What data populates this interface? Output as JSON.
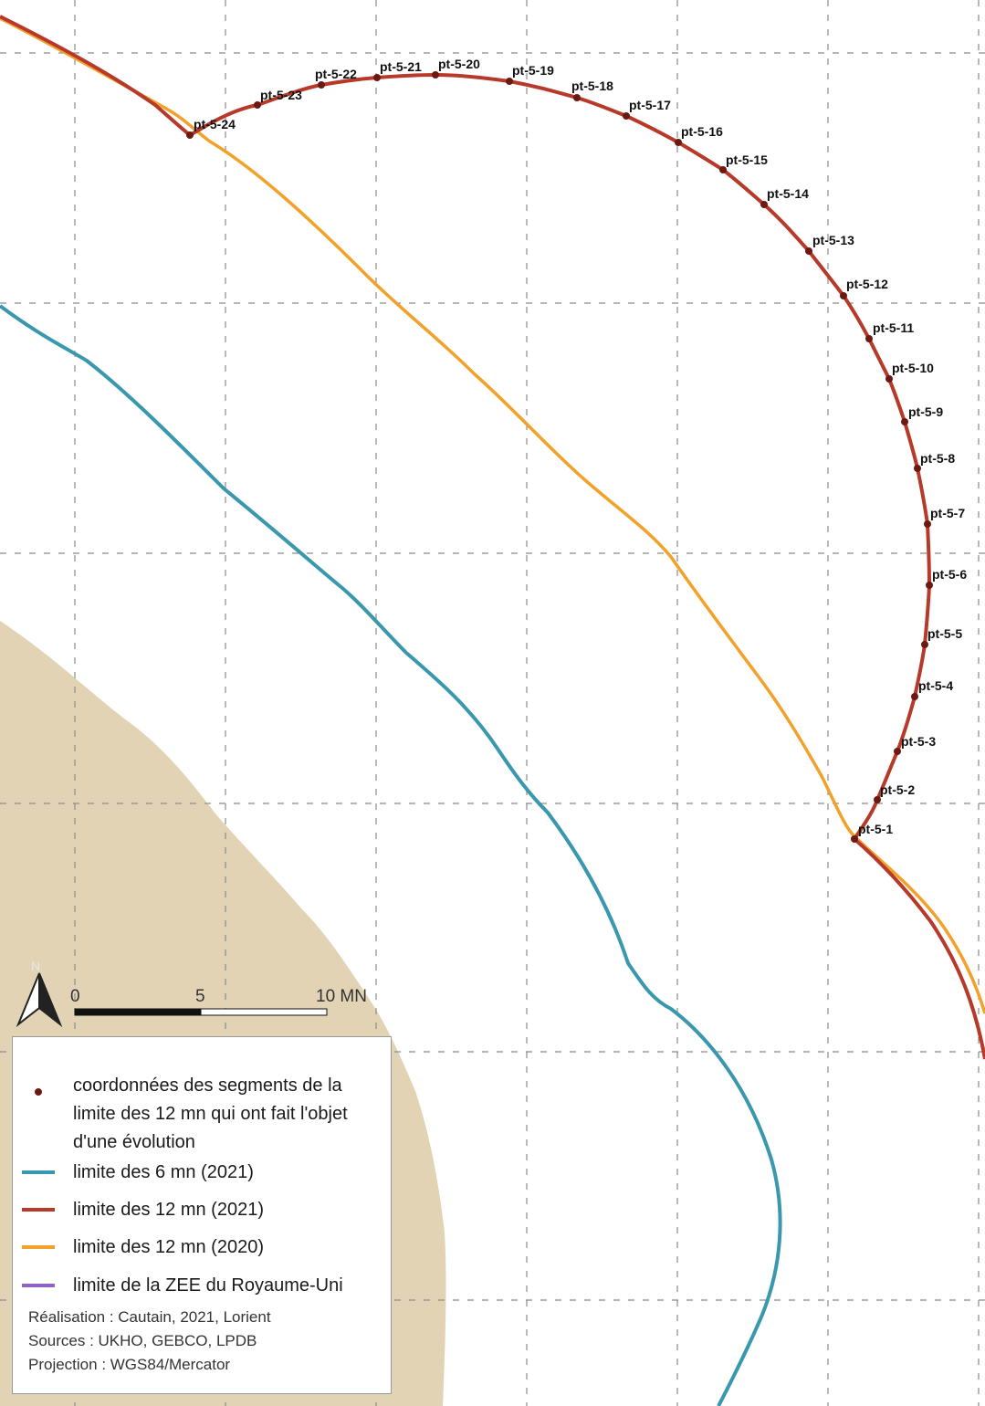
{
  "colors": {
    "land": "#e2d3b4",
    "grid": "#8c8c8c",
    "limit_6mn_2021": "#3a98ae",
    "limit_12mn_2021": "#b7392a",
    "limit_12mn_2020": "#f2a12a",
    "zee_uk": "#8e63c7",
    "segment_point": "#6b1a12"
  },
  "points": [
    {
      "label": "pt-5-1"
    },
    {
      "label": "pt-5-2"
    },
    {
      "label": "pt-5-3"
    },
    {
      "label": "pt-5-4"
    },
    {
      "label": "pt-5-5"
    },
    {
      "label": "pt-5-6"
    },
    {
      "label": "pt-5-7"
    },
    {
      "label": "pt-5-8"
    },
    {
      "label": "pt-5-9"
    },
    {
      "label": "pt-5-10"
    },
    {
      "label": "pt-5-11"
    },
    {
      "label": "pt-5-12"
    },
    {
      "label": "pt-5-13"
    },
    {
      "label": "pt-5-14"
    },
    {
      "label": "pt-5-15"
    },
    {
      "label": "pt-5-16"
    },
    {
      "label": "pt-5-17"
    },
    {
      "label": "pt-5-18"
    },
    {
      "label": "pt-5-19"
    },
    {
      "label": "pt-5-20"
    },
    {
      "label": "pt-5-21"
    },
    {
      "label": "pt-5-22"
    },
    {
      "label": "pt-5-23"
    },
    {
      "label": "pt-5-24"
    }
  ],
  "north_arrow": {
    "label": "N",
    "icon": "north-arrow-icon"
  },
  "scale_bar": {
    "labels": [
      "0",
      "5",
      "10 MN"
    ]
  },
  "legend": {
    "items": [
      {
        "text": "coordonnées des segments de la limite des 12 mn qui ont fait l'objet d'une évolution",
        "symbol": "dot"
      },
      {
        "text": "limite des 6 mn (2021)",
        "symbol": "line"
      },
      {
        "text": "limite des 12 mn (2021)",
        "symbol": "line"
      },
      {
        "text": "limite des 12 mn (2020)",
        "symbol": "line"
      },
      {
        "text": "limite de la ZEE du Royaume-Uni",
        "symbol": "line"
      }
    ],
    "credits": [
      "Réalisation : Cautain, 2021, Lorient",
      "Sources : UKHO, GEBCO, LPDB",
      "Projection : WGS84/Mercator"
    ]
  }
}
